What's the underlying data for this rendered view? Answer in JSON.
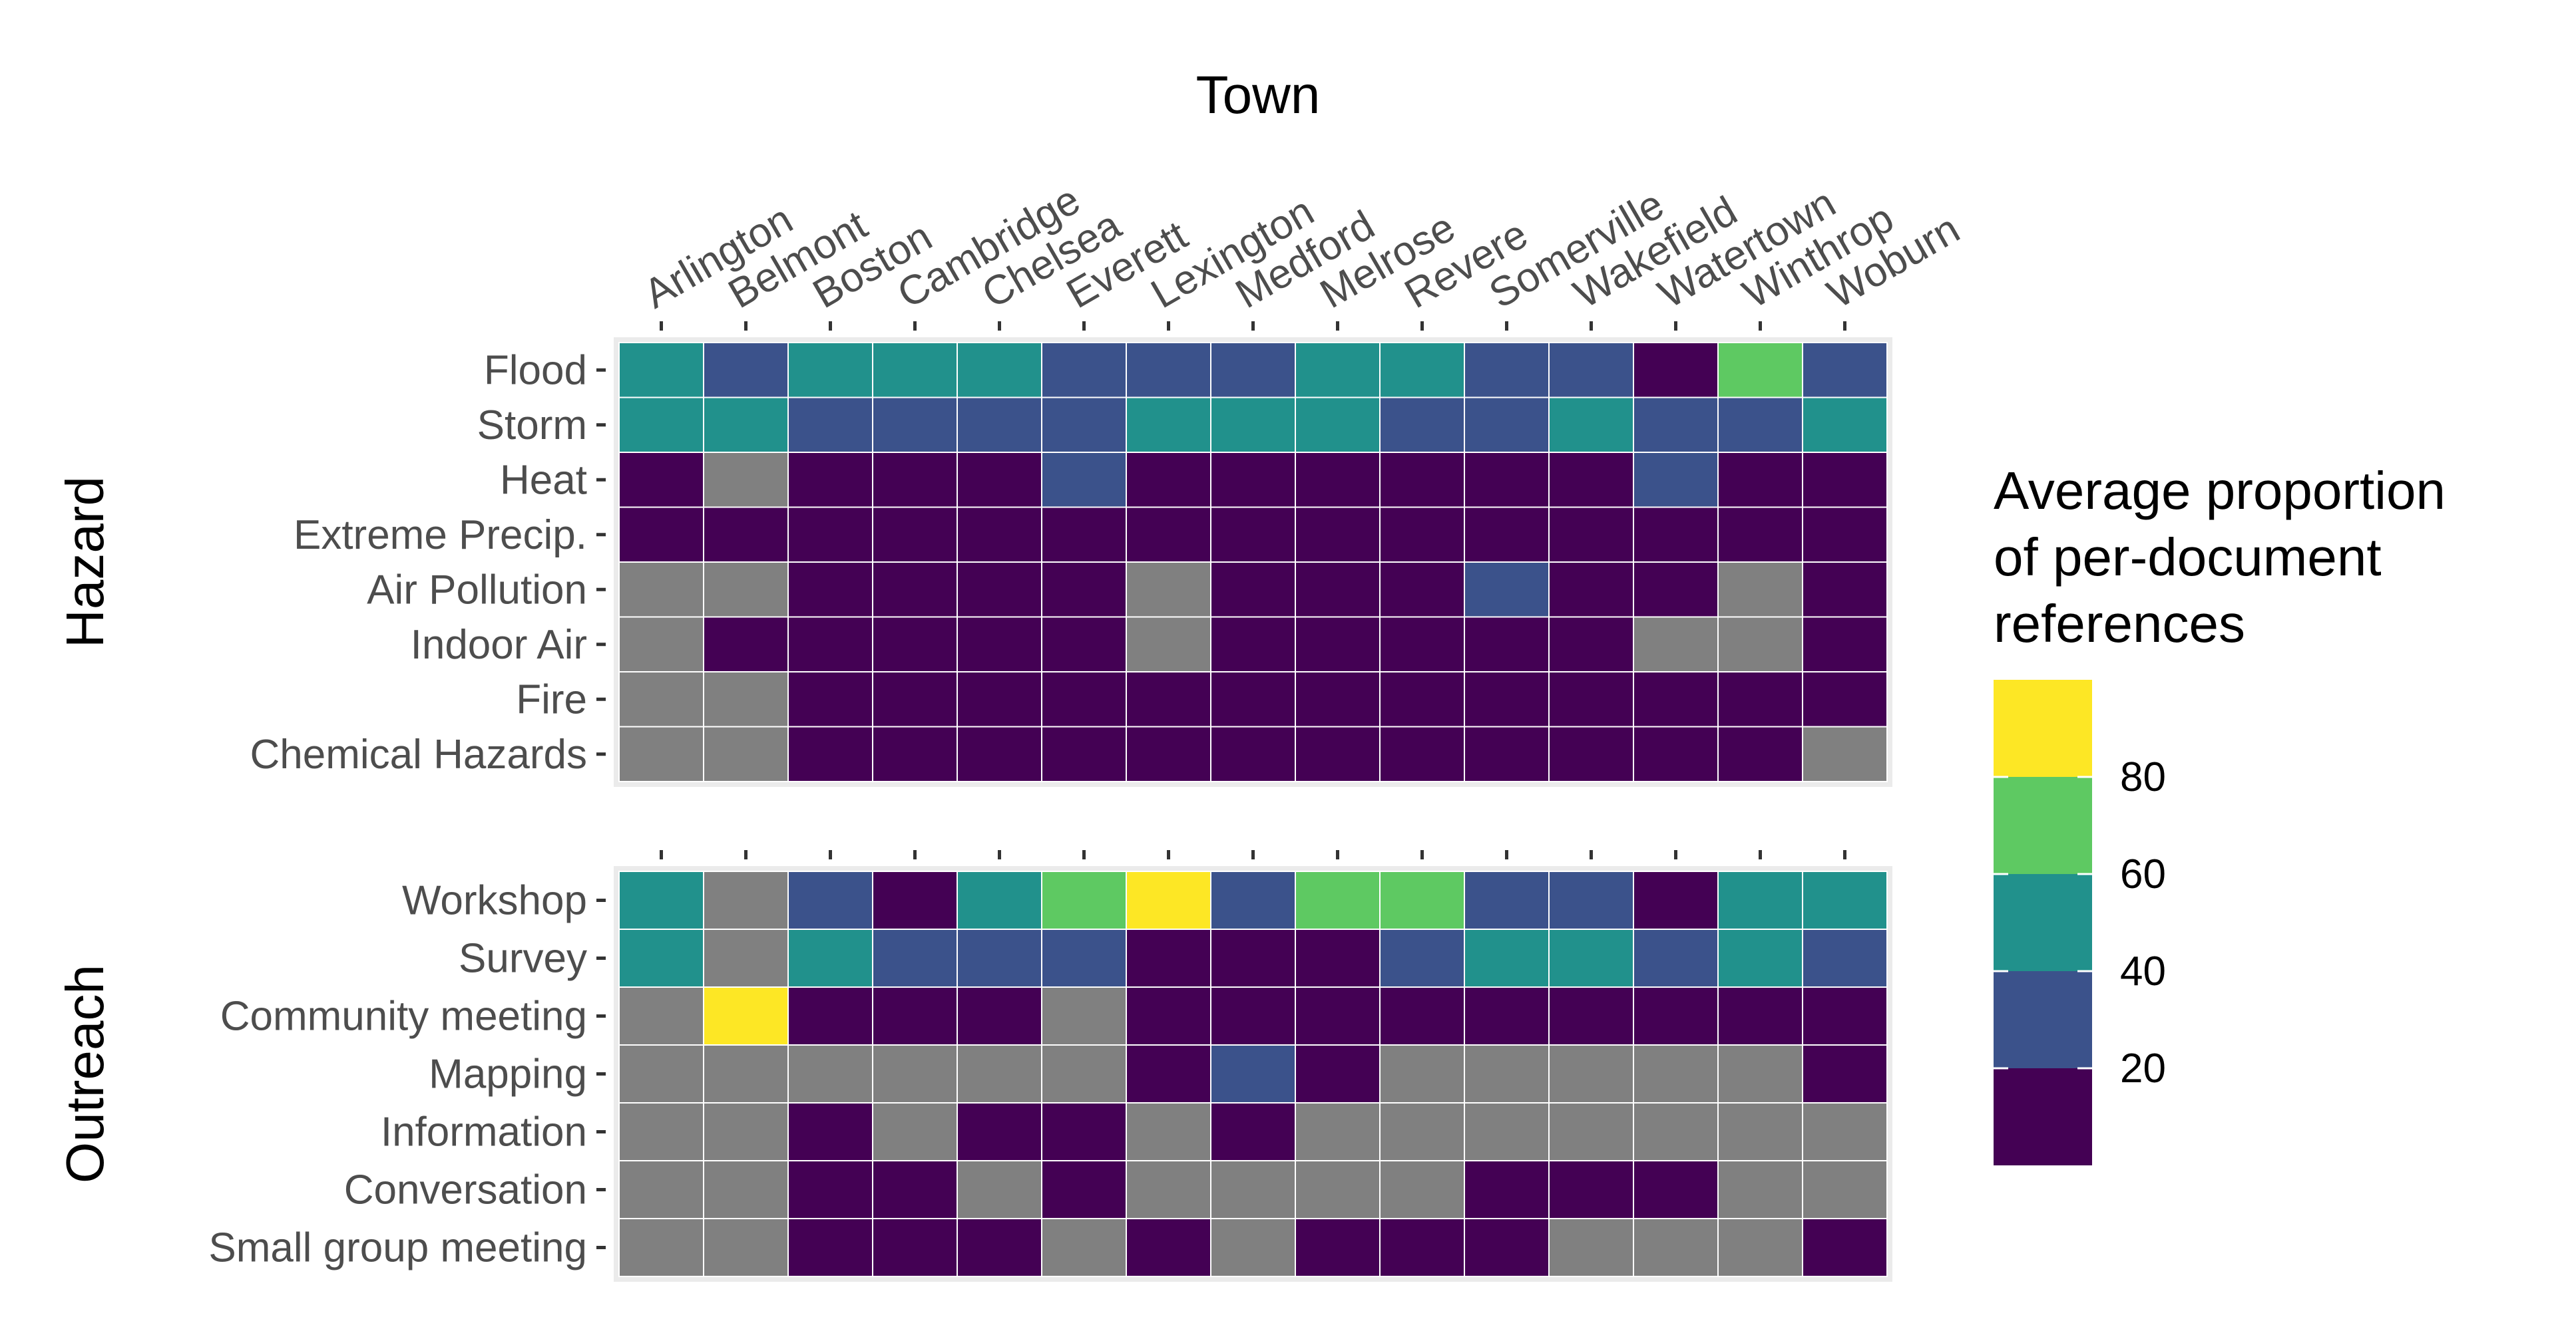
{
  "chart_data": {
    "type": "heatmap",
    "x_title": "Town",
    "towns": [
      "Arlington",
      "Belmont",
      "Boston",
      "Cambridge",
      "Chelsea",
      "Everett",
      "Lexington",
      "Medford",
      "Melrose",
      "Revere",
      "Somerville",
      "Wakefield",
      "Watertown",
      "Winthrop",
      "Woburn"
    ],
    "panels": [
      {
        "label": "Hazard",
        "rows": [
          "Flood",
          "Storm",
          "Heat",
          "Extreme Precip.",
          "Air Pollution",
          "Indoor Air",
          "Fire",
          "Chemical Hazards"
        ],
        "values": [
          [
            40,
            20,
            40,
            40,
            40,
            20,
            20,
            20,
            40,
            40,
            20,
            20,
            5,
            60,
            20
          ],
          [
            40,
            40,
            20,
            20,
            20,
            20,
            40,
            40,
            40,
            20,
            20,
            40,
            20,
            20,
            40
          ],
          [
            5,
            null,
            5,
            5,
            5,
            20,
            5,
            5,
            5,
            5,
            5,
            5,
            20,
            5,
            5
          ],
          [
            5,
            5,
            5,
            5,
            5,
            5,
            5,
            5,
            5,
            5,
            5,
            5,
            5,
            5,
            5
          ],
          [
            null,
            null,
            5,
            5,
            5,
            5,
            null,
            5,
            5,
            5,
            20,
            5,
            5,
            null,
            5
          ],
          [
            null,
            5,
            5,
            5,
            5,
            5,
            null,
            5,
            5,
            5,
            5,
            5,
            null,
            null,
            5
          ],
          [
            null,
            null,
            5,
            5,
            5,
            5,
            5,
            5,
            5,
            5,
            5,
            5,
            5,
            5,
            5
          ],
          [
            null,
            null,
            5,
            5,
            5,
            5,
            5,
            5,
            5,
            5,
            5,
            5,
            5,
            5,
            null
          ]
        ]
      },
      {
        "label": "Outreach",
        "rows": [
          "Workshop",
          "Survey",
          "Community meeting",
          "Mapping",
          "Information",
          "Conversation",
          "Small group meeting"
        ],
        "values": [
          [
            40,
            null,
            20,
            5,
            40,
            60,
            90,
            20,
            60,
            60,
            20,
            20,
            5,
            40,
            40
          ],
          [
            40,
            null,
            40,
            20,
            20,
            20,
            5,
            5,
            5,
            20,
            40,
            40,
            20,
            40,
            20
          ],
          [
            null,
            90,
            5,
            5,
            5,
            null,
            5,
            5,
            5,
            5,
            5,
            5,
            5,
            5,
            5
          ],
          [
            null,
            null,
            null,
            null,
            null,
            null,
            5,
            20,
            5,
            null,
            null,
            null,
            null,
            null,
            5
          ],
          [
            null,
            null,
            5,
            null,
            5,
            5,
            null,
            5,
            null,
            null,
            null,
            null,
            null,
            null,
            null
          ],
          [
            null,
            null,
            5,
            5,
            null,
            5,
            null,
            null,
            null,
            null,
            5,
            5,
            5,
            null,
            null
          ],
          [
            null,
            null,
            5,
            5,
            5,
            null,
            5,
            null,
            5,
            5,
            5,
            null,
            null,
            null,
            5
          ]
        ]
      }
    ],
    "legend": {
      "title_lines": [
        "Average proportion",
        "of per-document",
        "references"
      ],
      "bins": [
        {
          "color": "#fde725"
        },
        {
          "color": "#5ec962"
        },
        {
          "color": "#21918c"
        },
        {
          "color": "#3b528b"
        },
        {
          "color": "#440154"
        }
      ],
      "tick_labels": [
        "80",
        "60",
        "40",
        "20"
      ],
      "na_color": "#808080"
    },
    "panel_background": "#ebebeb",
    "grid_line_color": "#ffffff"
  }
}
